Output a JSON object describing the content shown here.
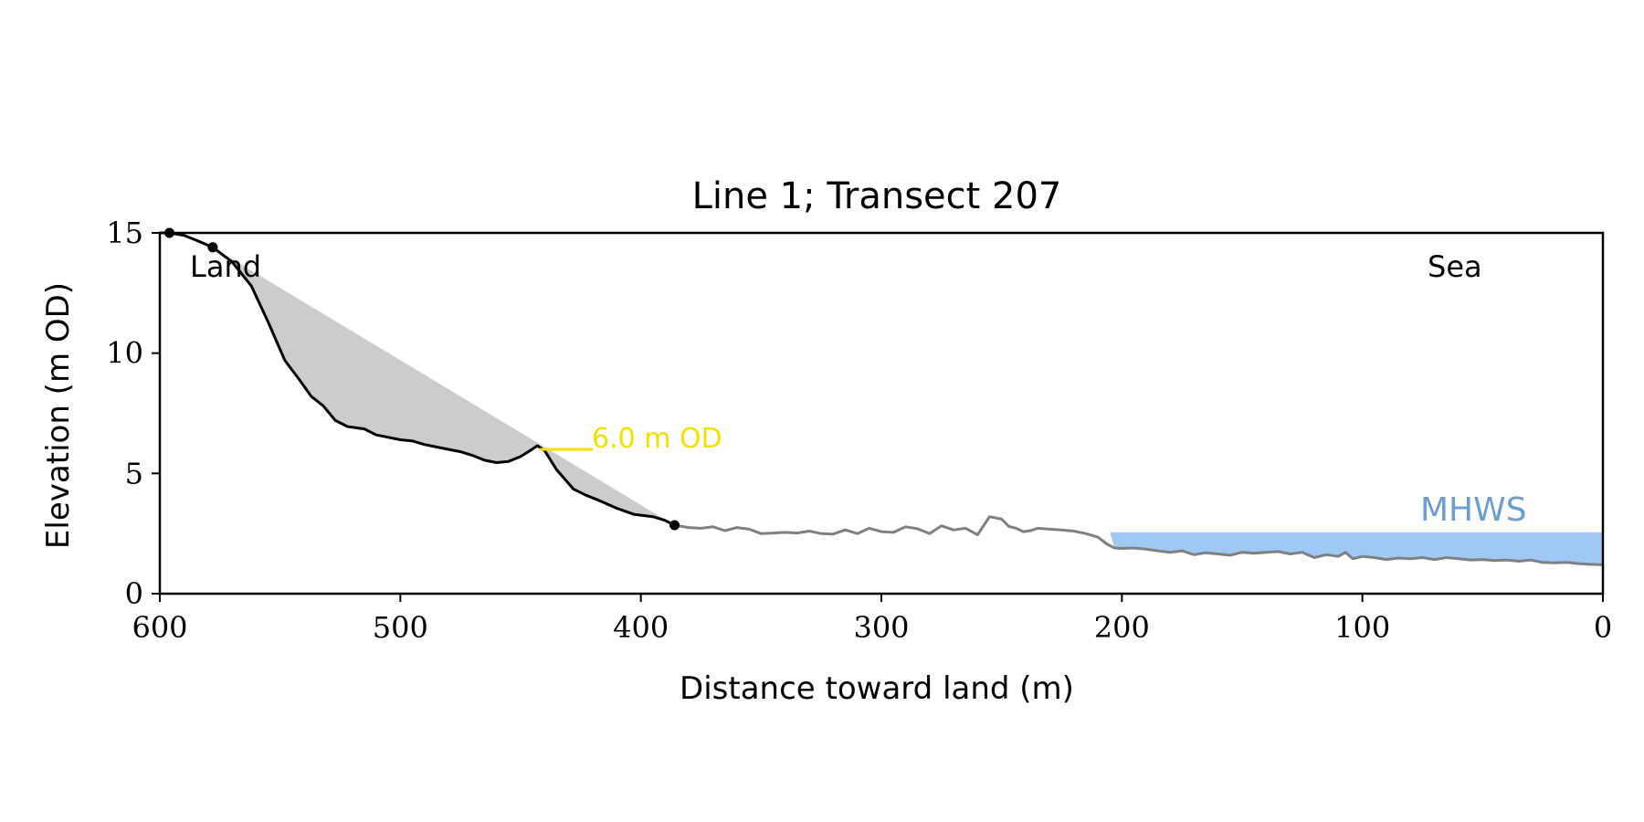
{
  "chart_data": {
    "type": "line",
    "title": "Line 1; Transect 207",
    "xlabel": "Distance toward land (m)",
    "ylabel": "Elevation (m OD)",
    "xlim": [
      600,
      0
    ],
    "ylim": [
      0,
      15
    ],
    "x_ticks": [
      600,
      500,
      400,
      300,
      200,
      100,
      0
    ],
    "y_ticks": [
      0,
      5,
      10,
      15
    ],
    "grid": false,
    "annotations": {
      "land_label": "Land",
      "sea_label": "Sea",
      "threshold_label": "6.0 m OD",
      "mhws_label": "MHWS"
    },
    "colors": {
      "profile": "#000000",
      "seaward_profile": "#808080",
      "fill": "#cccccc",
      "threshold": "#f5e100",
      "mhws_fill": "#a0c8f5",
      "mhws_text": "#6a9fd0"
    },
    "threshold": {
      "y": 6.0,
      "x_start": 442,
      "x_end": 420
    },
    "mhws": {
      "y": 2.55,
      "x_start": 205,
      "x_end": 0
    },
    "endpoints": [
      {
        "x": 596,
        "y": 15.0
      },
      {
        "x": 578,
        "y": 14.4
      },
      {
        "x": 386,
        "y": 2.85
      }
    ],
    "fill_chord": {
      "from": [
        578,
        14.4
      ],
      "to": [
        386,
        2.85
      ]
    },
    "series": [
      {
        "role": "cliff profile",
        "x": [
          600,
          596,
          590,
          585,
          578,
          570,
          562,
          555,
          548,
          542,
          537,
          532,
          527,
          522,
          515,
          510,
          505,
          500,
          495,
          490,
          485,
          480,
          475,
          470,
          465,
          460,
          455,
          450,
          446,
          443,
          440,
          435,
          428,
          423,
          418,
          410,
          403,
          395,
          390,
          386
        ],
        "y": [
          15.0,
          15.0,
          14.9,
          14.7,
          14.4,
          13.8,
          12.8,
          11.3,
          9.7,
          8.9,
          8.2,
          7.8,
          7.2,
          6.95,
          6.85,
          6.6,
          6.5,
          6.4,
          6.35,
          6.2,
          6.1,
          6.0,
          5.9,
          5.75,
          5.55,
          5.45,
          5.5,
          5.7,
          5.95,
          6.15,
          5.95,
          5.15,
          4.35,
          4.1,
          3.9,
          3.55,
          3.3,
          3.2,
          3.05,
          2.85
        ]
      },
      {
        "role": "seaward profile",
        "x": [
          386,
          380,
          375,
          370,
          365,
          360,
          355,
          350,
          345,
          340,
          335,
          330,
          325,
          320,
          315,
          310,
          305,
          300,
          295,
          290,
          285,
          280,
          275,
          270,
          265,
          260,
          255,
          250,
          247,
          244,
          241,
          238,
          235,
          230,
          225,
          220,
          215,
          210,
          206,
          203,
          200,
          195,
          190,
          185,
          180,
          175,
          170,
          165,
          160,
          155,
          150,
          145,
          140,
          135,
          130,
          125,
          120,
          115,
          110,
          107,
          104,
          100,
          95,
          90,
          85,
          80,
          75,
          70,
          65,
          60,
          55,
          50,
          45,
          40,
          35,
          30,
          25,
          20,
          15,
          10,
          5,
          0
        ],
        "y": [
          2.85,
          2.75,
          2.72,
          2.78,
          2.62,
          2.75,
          2.68,
          2.5,
          2.52,
          2.55,
          2.52,
          2.6,
          2.5,
          2.48,
          2.65,
          2.5,
          2.72,
          2.58,
          2.55,
          2.78,
          2.7,
          2.5,
          2.82,
          2.65,
          2.72,
          2.45,
          3.2,
          3.1,
          2.8,
          2.72,
          2.58,
          2.62,
          2.72,
          2.68,
          2.65,
          2.6,
          2.5,
          2.35,
          2.05,
          1.9,
          1.88,
          1.9,
          1.85,
          1.78,
          1.72,
          1.78,
          1.62,
          1.7,
          1.65,
          1.6,
          1.72,
          1.68,
          1.72,
          1.75,
          1.65,
          1.72,
          1.5,
          1.62,
          1.55,
          1.72,
          1.45,
          1.55,
          1.5,
          1.42,
          1.48,
          1.45,
          1.5,
          1.42,
          1.5,
          1.45,
          1.4,
          1.42,
          1.38,
          1.4,
          1.35,
          1.4,
          1.3,
          1.28,
          1.3,
          1.25,
          1.22,
          1.2
        ]
      }
    ]
  }
}
